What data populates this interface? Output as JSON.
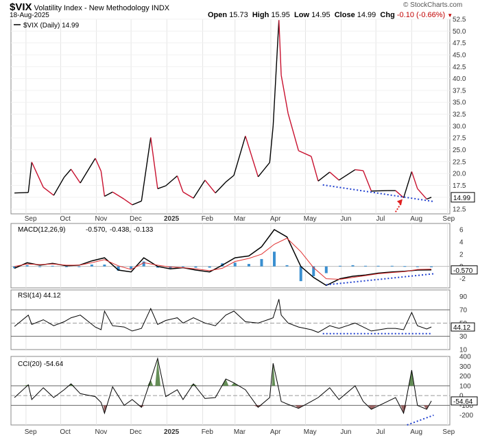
{
  "header": {
    "symbol": "$VIX",
    "name": "Volatility Index - New Methodology",
    "exchange": "INDX",
    "date": "18-Aug-2025",
    "open_label": "Open",
    "open": "15.73",
    "high_label": "High",
    "high": "15.95",
    "low_label": "Low",
    "low": "14.95",
    "close_label": "Close",
    "close": "14.99",
    "chg_label": "Chg",
    "chg": "-0.10 (-0.66%)",
    "chg_icon": "down-triangle-icon",
    "watermark": "© StockCharts.com"
  },
  "colors": {
    "price_up": "#000000",
    "price_down": "#c8102e",
    "trendline": "#1f3fcf",
    "arrow": "#e02020",
    "macd_line": "#000000",
    "signal_line": "#e03030",
    "histogram": "#3a8fd0",
    "cci_fill_high": "#4a7a3a",
    "cci_fill_low": "#8a4a4a",
    "close_box": "#000000"
  },
  "chart_data": [
    {
      "type": "line",
      "panel": "price",
      "legend": "$VIX (Daily) 14.99",
      "x": [
        "2024-08-22",
        "2024-09-03",
        "2024-09-06",
        "2024-09-16",
        "2024-09-25",
        "2024-10-04",
        "2024-10-10",
        "2024-10-18",
        "2024-10-31",
        "2024-11-05",
        "2024-11-08",
        "2024-11-15",
        "2024-11-25",
        "2024-12-02",
        "2024-12-10",
        "2024-12-18",
        "2024-12-24",
        "2024-12-31",
        "2025-01-10",
        "2025-01-15",
        "2025-01-24",
        "2025-02-03",
        "2025-02-12",
        "2025-02-21",
        "2025-02-28",
        "2025-03-10",
        "2025-03-21",
        "2025-03-31",
        "2025-04-03",
        "2025-04-08",
        "2025-04-10",
        "2025-04-16",
        "2025-04-25",
        "2025-05-06",
        "2025-05-12",
        "2025-05-22",
        "2025-05-30",
        "2025-06-13",
        "2025-06-20",
        "2025-06-27",
        "2025-07-11",
        "2025-07-18",
        "2025-07-25",
        "2025-08-01",
        "2025-08-06",
        "2025-08-14",
        "2025-08-18"
      ],
      "values": [
        15.9,
        16.0,
        22.4,
        17.1,
        15.4,
        19.2,
        20.9,
        18.0,
        23.2,
        20.5,
        15.2,
        16.1,
        14.6,
        13.4,
        14.2,
        27.6,
        16.8,
        17.4,
        19.5,
        16.1,
        14.8,
        18.6,
        15.9,
        18.2,
        19.6,
        27.9,
        19.3,
        22.3,
        30.0,
        52.3,
        40.7,
        32.6,
        24.8,
        23.6,
        18.4,
        20.3,
        18.6,
        20.8,
        20.6,
        16.3,
        16.4,
        16.4,
        14.9,
        20.4,
        16.8,
        14.6,
        14.99
      ],
      "ylim": [
        11.5,
        52.5
      ],
      "y_ticks": [
        "12.5",
        "15.0",
        "17.5",
        "20.0",
        "22.5",
        "25.0",
        "27.5",
        "30.0",
        "32.5",
        "35.0",
        "37.5",
        "40.0",
        "42.5",
        "45.0",
        "47.5",
        "50.0",
        "52.5"
      ],
      "last_value": "14.99"
    },
    {
      "type": "line",
      "panel": "macd",
      "legend_prefix": "MACD(12,26,9)",
      "legend_macd": "-0.570",
      "legend_signal": "-0.438",
      "legend_hist": "-0.133",
      "series": [
        {
          "name": "MACD",
          "values": [
            -0.3,
            0.6,
            0.2,
            0.5,
            0.1,
            0.2,
            0.9,
            1.4,
            -0.6,
            -0.9,
            1.4,
            0.0,
            -0.4,
            -0.2,
            -0.6,
            -0.9,
            0.2,
            1.4,
            1.7,
            3.2,
            6.0,
            4.8,
            0.0,
            -1.8,
            -3.1,
            -2.0,
            -1.6,
            -1.4,
            -1.1,
            -0.9,
            -0.8,
            -0.6,
            -0.57
          ]
        },
        {
          "name": "Signal",
          "values": [
            0.0,
            0.4,
            0.3,
            0.4,
            0.2,
            0.2,
            0.6,
            1.1,
            0.1,
            -0.5,
            0.6,
            0.2,
            -0.1,
            -0.2,
            -0.4,
            -0.7,
            -0.3,
            0.8,
            1.3,
            2.0,
            3.6,
            4.6,
            2.4,
            -0.2,
            -2.0,
            -2.1,
            -1.8,
            -1.5,
            -1.2,
            -1.0,
            -0.85,
            -0.5,
            -0.438
          ]
        }
      ],
      "ylim": [
        -3.5,
        7
      ],
      "y_ticks": [
        "-2",
        "0",
        "2",
        "4",
        "6"
      ],
      "last_value": "-0.570"
    },
    {
      "type": "line",
      "panel": "rsi",
      "legend": "RSI(14) 44.12",
      "values": [
        45,
        62,
        48,
        55,
        46,
        52,
        58,
        62,
        44,
        40,
        68,
        46,
        44,
        38,
        42,
        72,
        48,
        54,
        58,
        50,
        58,
        50,
        46,
        62,
        68,
        52,
        50,
        56,
        58,
        86,
        62,
        50,
        44,
        40,
        36,
        46,
        42,
        50,
        44,
        38,
        42,
        42,
        40,
        66,
        46,
        41,
        44.12
      ],
      "ylim": [
        10,
        100
      ],
      "y_ticks": [
        "10",
        "30",
        "50",
        "70",
        "90"
      ],
      "levels": [
        30,
        70
      ],
      "last_value": "44.12"
    },
    {
      "type": "line",
      "panel": "cci",
      "legend": "CCI(20) -54.64",
      "values": [
        -20,
        110,
        -40,
        80,
        -20,
        60,
        120,
        20,
        -10,
        -70,
        -180,
        90,
        -100,
        -40,
        -120,
        160,
        380,
        -10,
        60,
        -40,
        120,
        -30,
        -20,
        170,
        130,
        60,
        -120,
        -20,
        330,
        60,
        -60,
        -90,
        -130,
        -60,
        -20,
        80,
        -40,
        100,
        -60,
        -140,
        -60,
        -20,
        -180,
        260,
        -100,
        -140,
        -54.64
      ],
      "ylim": [
        -300,
        400
      ],
      "y_ticks": [
        "-200",
        "-100",
        "0",
        "100",
        "200",
        "300",
        "400"
      ],
      "levels": [
        -100,
        100
      ],
      "last_value": "-54.64"
    }
  ],
  "x_axis_labels": [
    "Sep",
    "Oct",
    "Nov",
    "Dec",
    "2025",
    "Feb",
    "Mar",
    "Apr",
    "May",
    "Jun",
    "Jul",
    "Aug",
    "Sep"
  ]
}
